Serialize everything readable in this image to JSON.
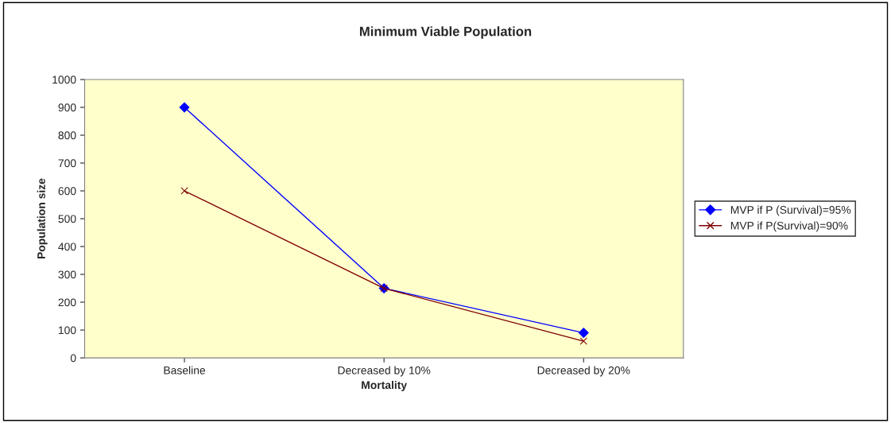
{
  "chart_data": {
    "type": "line",
    "title": "Minimum Viable Population",
    "xlabel": "Mortality",
    "ylabel": "Population size",
    "categories": [
      "Baseline",
      "Decreased by 10%",
      "Decreased by 20%"
    ],
    "series": [
      {
        "name": "MVP if P (Survival)=95%",
        "color": "#0000ff",
        "values": [
          900,
          250,
          90
        ],
        "marker": "diamond"
      },
      {
        "name": "MVP if P(Survival)=90%",
        "color": "#800000",
        "values": [
          600,
          250,
          60
        ],
        "marker": "cross"
      }
    ],
    "ylim": [
      0,
      1000
    ],
    "yticks": [
      0,
      100,
      200,
      300,
      400,
      500,
      600,
      700,
      800,
      900,
      1000
    ],
    "grid": false,
    "legend": "right",
    "line_style": "solid"
  }
}
